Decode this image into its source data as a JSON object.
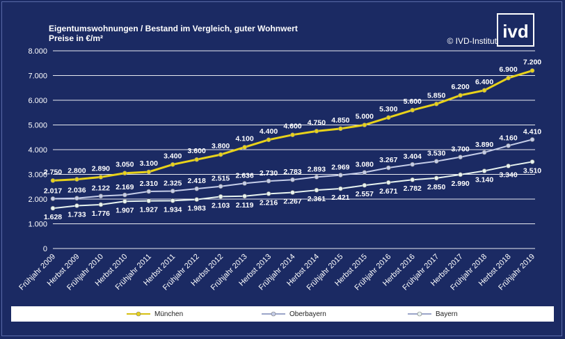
{
  "header": {
    "title": "Eigentumswohnungen / Bestand im  Vergleich, guter Wohnwert",
    "subtitle": "Preise in €/m²",
    "copyright": "© IVD-Institut",
    "logo_text": "ivd"
  },
  "colors": {
    "background": "#1b2a63",
    "muenchen": "#e8d21a",
    "oberbayern": "#c5cde8",
    "bayern": "#e8f4f0",
    "grid": "#ffffff"
  },
  "chart_data": {
    "type": "line",
    "title": "Eigentumswohnungen / Bestand im  Vergleich, guter Wohnwert",
    "subtitle": "Preise in €/m²",
    "ylim": [
      0,
      8000
    ],
    "y_ticks": [
      "0",
      "1.000",
      "2.000",
      "3.000",
      "4.000",
      "5.000",
      "6.000",
      "7.000",
      "8.000"
    ],
    "categories": [
      "Frühjahr 2009",
      "Herbst 2009",
      "Frühjahr 2010",
      "Herbst 2010",
      "Frühjahr 2011",
      "Herbst 2011",
      "Frühjahr 2012",
      "Herbst 2012",
      "Frühjahr 2013",
      "Herbst 2013",
      "Frühjahr 2014",
      "Herbst 2014",
      "Frühjahr 2015",
      "Herbst 2015",
      "Frühjahr 2016",
      "Herbst 2016",
      "Frühjahr 2017",
      "Herbst 2017",
      "Frühjahr 2018",
      "Herbst 2018",
      "Frühjahr 2019"
    ],
    "grid": true,
    "legend_position": "bottom",
    "series": [
      {
        "name": "München",
        "values": [
          2750,
          2800,
          2890,
          3050,
          3100,
          3400,
          3600,
          3800,
          4100,
          4400,
          4600,
          4750,
          4850,
          5000,
          5300,
          5600,
          5850,
          6200,
          6400,
          6900,
          7200
        ],
        "labels": [
          "2.750",
          "2.800",
          "2.890",
          "3.050",
          "3.100",
          "3.400",
          "3.600",
          "3.800",
          "4.100",
          "4.400",
          "4.600",
          "4.750",
          "4.850",
          "5.000",
          "5.300",
          "5.600",
          "5.850",
          "6.200",
          "6.400",
          "6.900",
          "7.200"
        ]
      },
      {
        "name": "Oberbayern",
        "values": [
          2017,
          2036,
          2122,
          2169,
          2310,
          2325,
          2418,
          2515,
          2636,
          2730,
          2783,
          2893,
          2969,
          3080,
          3267,
          3404,
          3530,
          3700,
          3890,
          4160,
          4410
        ],
        "labels": [
          "2.017",
          "2.036",
          "2.122",
          "2.169",
          "2.310",
          "2.325",
          "2.418",
          "2.515",
          "2.636",
          "2.730",
          "2.783",
          "2.893",
          "2.969",
          "3.080",
          "3.267",
          "3.404",
          "3.530",
          "3.700",
          "3.890",
          "4.160",
          "4.410"
        ]
      },
      {
        "name": "Bayern",
        "values": [
          1628,
          1733,
          1776,
          1907,
          1927,
          1934,
          1983,
          2103,
          2119,
          2216,
          2267,
          2361,
          2421,
          2557,
          2671,
          2782,
          2850,
          2990,
          3140,
          3340,
          3510
        ],
        "labels": [
          "1.628",
          "1.733",
          "1.776",
          "1.907",
          "1.927",
          "1.934",
          "1.983",
          "2.103",
          "2.119",
          "2.216",
          "2.267",
          "2.361",
          "2.421",
          "2.557",
          "2.671",
          "2.782",
          "2.850",
          "2.990",
          "3.140",
          "3.340",
          "3.510"
        ]
      }
    ]
  }
}
